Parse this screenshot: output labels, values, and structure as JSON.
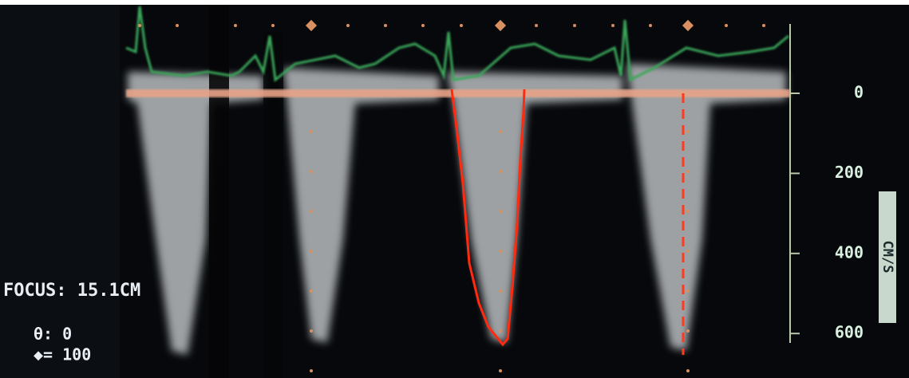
{
  "scale": {
    "unit": "CM/S",
    "ticks": [
      0,
      200,
      400,
      600
    ]
  },
  "info": {
    "focus": "FOCUS: 15.1CM",
    "angle": "θ: 0",
    "gain": "◆= 100"
  }
}
